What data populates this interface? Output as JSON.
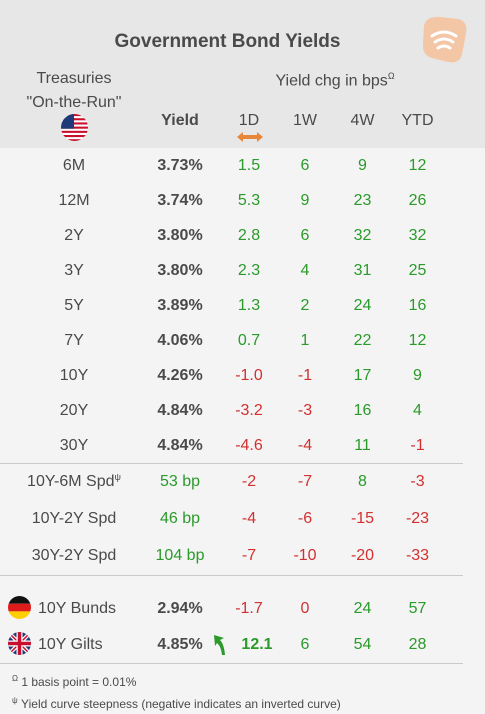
{
  "title": "Government Bond Yields",
  "header": {
    "treasuries_line1": "Treasuries",
    "treasuries_line2": "\"On-the-Run\"",
    "yield_chg": "Yield chg in bps",
    "yield_chg_sup": "Ω",
    "columns": [
      "Yield",
      "1D",
      "1W",
      "4W",
      "YTD"
    ]
  },
  "treasuries": [
    {
      "label": "6M",
      "yield": "3.73%",
      "d1": "1.5",
      "w1": "6",
      "w4": "9",
      "ytd": "12"
    },
    {
      "label": "12M",
      "yield": "3.74%",
      "d1": "5.3",
      "w1": "9",
      "w4": "23",
      "ytd": "26"
    },
    {
      "label": "2Y",
      "yield": "3.80%",
      "d1": "2.8",
      "w1": "6",
      "w4": "32",
      "ytd": "32"
    },
    {
      "label": "3Y",
      "yield": "3.80%",
      "d1": "2.3",
      "w1": "4",
      "w4": "31",
      "ytd": "25"
    },
    {
      "label": "5Y",
      "yield": "3.89%",
      "d1": "1.3",
      "w1": "2",
      "w4": "24",
      "ytd": "16"
    },
    {
      "label": "7Y",
      "yield": "4.06%",
      "d1": "0.7",
      "w1": "1",
      "w4": "22",
      "ytd": "12"
    },
    {
      "label": "10Y",
      "yield": "4.26%",
      "d1": "-1.0",
      "w1": "-1",
      "w4": "17",
      "ytd": "9"
    },
    {
      "label": "20Y",
      "yield": "4.84%",
      "d1": "-3.2",
      "w1": "-3",
      "w4": "16",
      "ytd": "4"
    },
    {
      "label": "30Y",
      "yield": "4.84%",
      "d1": "-4.6",
      "w1": "-4",
      "w4": "11",
      "ytd": "-1"
    }
  ],
  "spreads": [
    {
      "label": "10Y-6M Spd",
      "sup": "ψ",
      "yield": "53 bp",
      "d1": "-2",
      "w1": "-7",
      "w4": "8",
      "ytd": "-3"
    },
    {
      "label": "10Y-2Y Spd",
      "sup": "",
      "yield": "46 bp",
      "d1": "-4",
      "w1": "-6",
      "w4": "-15",
      "ytd": "-23"
    },
    {
      "label": "30Y-2Y Spd",
      "sup": "",
      "yield": "104 bp",
      "d1": "-7",
      "w1": "-10",
      "w4": "-20",
      "ytd": "-33"
    }
  ],
  "bunds": {
    "label": "10Y Bunds",
    "yield": "2.94%",
    "d1": "-1.7",
    "w1": "0",
    "w4": "24",
    "ytd": "57"
  },
  "gilts": {
    "label": "10Y Gilts",
    "yield": "4.85%",
    "d1": "12.1",
    "w1": "6",
    "w4": "54",
    "ytd": "28"
  },
  "footnotes": {
    "f1_sym": "Ω",
    "f1": "1 basis point = 0.01%",
    "f2_sym": "ψ",
    "f2": "Yield curve steepness (negative indicates an inverted curve)"
  },
  "colors": {
    "positive": "#2a9a2a",
    "negative": "#d23030",
    "accent_orange": "#e8873a",
    "logo": "#f3c6a5"
  },
  "icons": [
    "us-flag-icon",
    "germany-flag-icon",
    "uk-flag-icon",
    "double-arrow-icon",
    "up-arrow-icon",
    "signal-logo-icon"
  ]
}
